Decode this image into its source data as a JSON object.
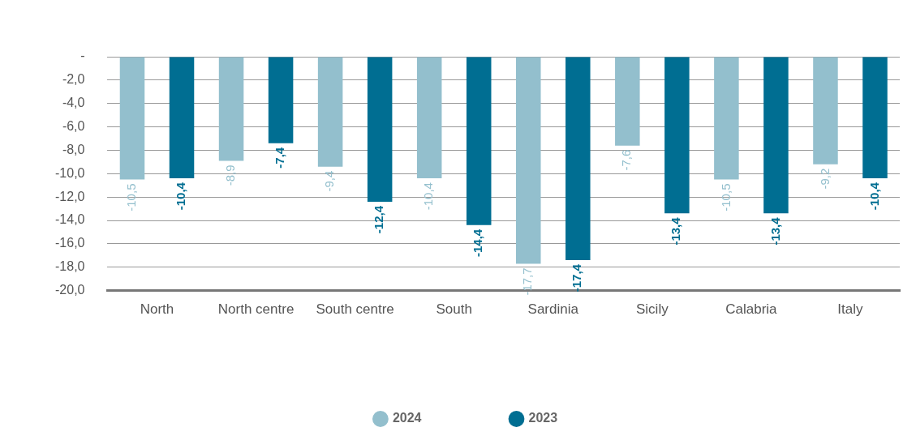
{
  "chart_data": {
    "type": "bar",
    "categories": [
      "North",
      "North centre",
      "South centre",
      "South",
      "Sardinia",
      "Sicily",
      "Calabria",
      "Italy"
    ],
    "series": [
      {
        "name": "2024",
        "color": "#93bfcd",
        "values": [
          -10.5,
          -8.9,
          -9.4,
          -10.4,
          -17.7,
          -7.6,
          -10.5,
          -9.2
        ],
        "value_labels": [
          "-10,5",
          "-8,9",
          "-9,4",
          "-10,4",
          "-17,7",
          "-7,6",
          "-10,5",
          "-9,2"
        ]
      },
      {
        "name": "2023",
        "color": "#006e92",
        "values": [
          -10.4,
          -7.4,
          -12.4,
          -14.4,
          -17.4,
          -13.4,
          -13.4,
          -10.4
        ],
        "value_labels": [
          "-10,4",
          "-7,4",
          "-12,4",
          "-14,4",
          "-17,4",
          "-13,4",
          "-13,4",
          "-10,4"
        ]
      }
    ],
    "ylim": [
      -20,
      0
    ],
    "yticks": [
      {
        "value": 0,
        "label": "-"
      },
      {
        "value": -2,
        "label": "-2,0"
      },
      {
        "value": -4,
        "label": "-4,0"
      },
      {
        "value": -6,
        "label": "-6,0"
      },
      {
        "value": -8,
        "label": "-8,0"
      },
      {
        "value": -10,
        "label": "-10,0"
      },
      {
        "value": -12,
        "label": "-12,0"
      },
      {
        "value": -14,
        "label": "-14,0"
      },
      {
        "value": -16,
        "label": "-16,0"
      },
      {
        "value": -18,
        "label": "-18,0"
      },
      {
        "value": -20,
        "label": "-20,0"
      }
    ],
    "grid": "y",
    "legend": "bottom"
  }
}
